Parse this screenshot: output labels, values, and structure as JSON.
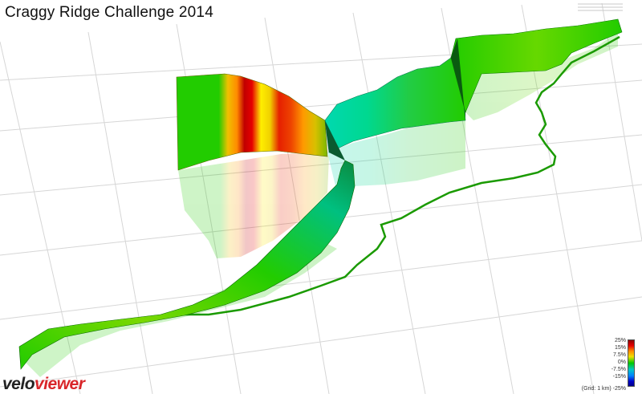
{
  "title": "Craggy Ridge Challenge 2014",
  "brand": {
    "part1": "velo",
    "part2": "viewer"
  },
  "legend": {
    "labels": [
      "25%",
      "15%",
      "7.5%",
      "0%",
      "-7.5%",
      "-15%",
      "-25%"
    ],
    "grid_note": "(Grid: 1 km)"
  },
  "icons": [
    "toolbar-options-icon"
  ],
  "colors": {
    "steep": "#e60000",
    "moderate": "#f0e000",
    "flat": "#22cc00",
    "descent": "#00d8a8",
    "grid": "#d6d6d6"
  }
}
